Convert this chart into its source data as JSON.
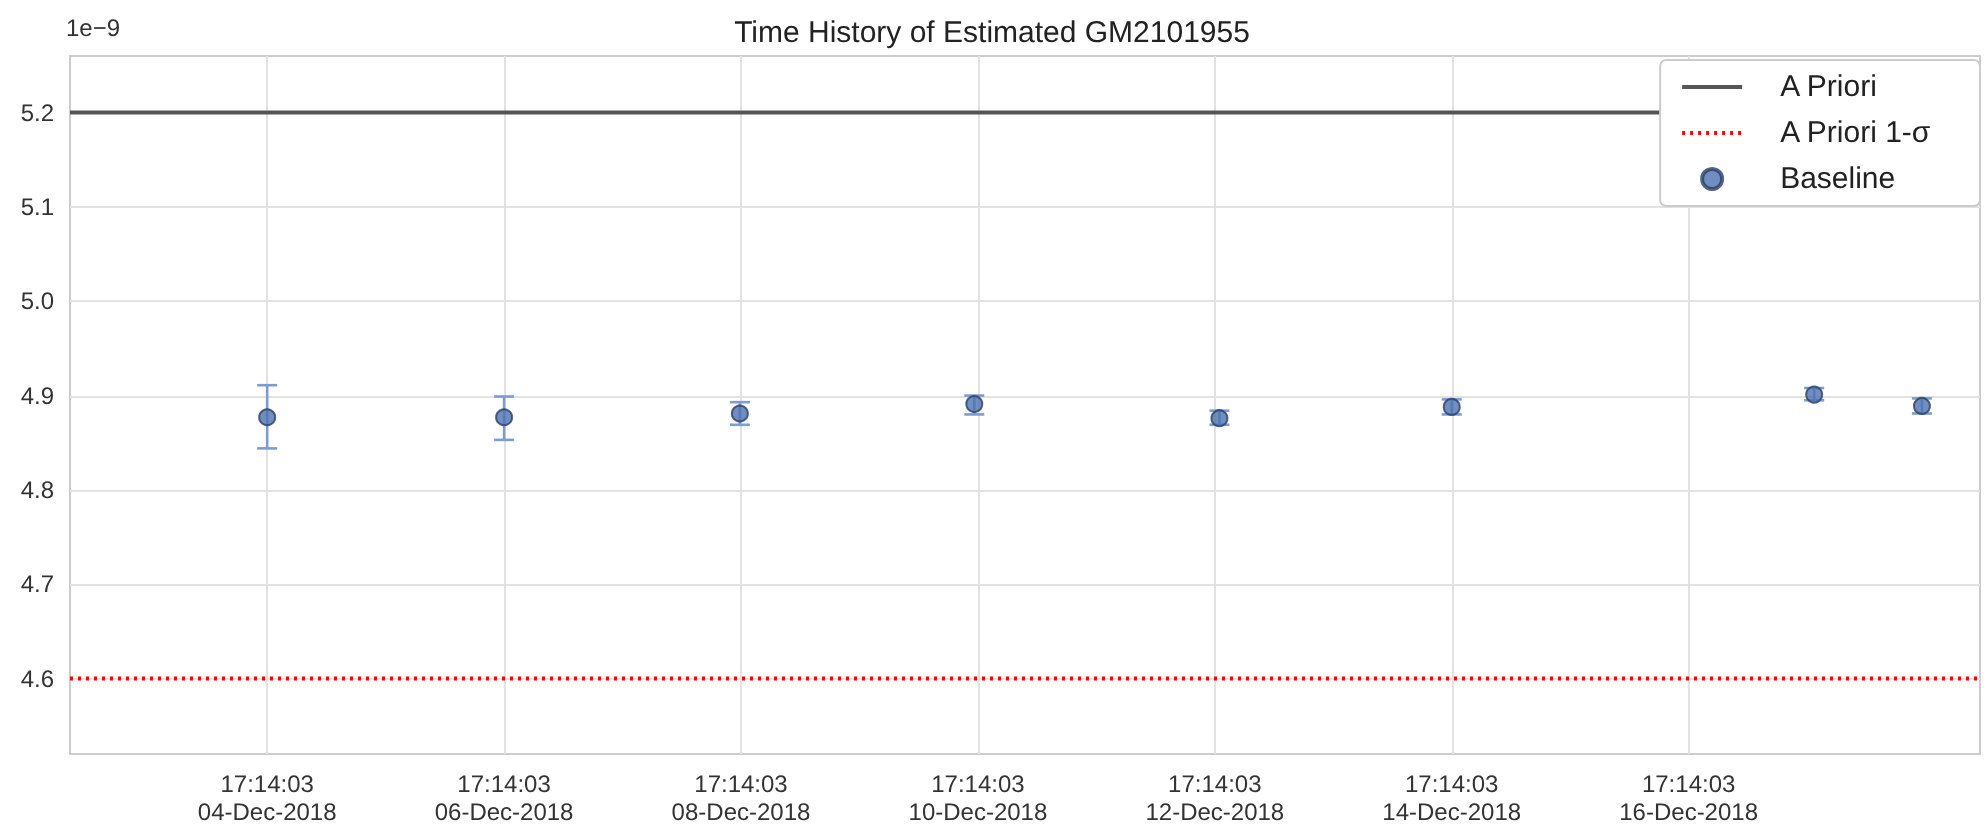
{
  "chart_data": {
    "type": "scatter",
    "title": "Time History of Estimated GM2101955",
    "annotations": [
      "1e−9"
    ],
    "x": [
      "2018-12-04T17:14",
      "2018-12-06T17:14",
      "2018-12-08T17:00",
      "2018-12-10T16:30",
      "2018-12-12T18:10",
      "2018-12-14T17:14",
      "2018-12-17T18:40",
      "2018-12-18T16:30"
    ],
    "series": [
      {
        "name": "Baseline",
        "color": "#4c72b0",
        "values": [
          4.877,
          4.877,
          4.881,
          4.891,
          4.876,
          4.888,
          4.901,
          4.889
        ],
        "errors": [
          [
            4.844,
            4.911
          ],
          [
            4.853,
            4.899
          ],
          [
            4.869,
            4.893
          ],
          [
            4.88,
            4.9
          ],
          [
            4.869,
            4.884
          ],
          [
            4.88,
            4.896
          ],
          [
            4.895,
            4.908
          ],
          [
            4.881,
            4.897
          ]
        ]
      }
    ],
    "xlim": [
      "2018-12-03T01:17",
      "2018-12-19T04:16"
    ],
    "xticks": [
      {
        "value": "2018-12-04T17:14",
        "label": "17:14:03\n04-Dec-2018"
      },
      {
        "value": "2018-12-06T17:14",
        "label": "17:14:03\n06-Dec-2018"
      },
      {
        "value": "2018-12-08T17:14",
        "label": "17:14:03\n08-Dec-2018"
      },
      {
        "value": "2018-12-10T17:14",
        "label": "17:14:03\n10-Dec-2018"
      },
      {
        "value": "2018-12-12T17:14",
        "label": "17:14:03\n12-Dec-2018"
      },
      {
        "value": "2018-12-14T17:14",
        "label": "17:14:03\n14-Dec-2018"
      },
      {
        "value": "2018-12-16T17:14",
        "label": "17:14:03\n16-Dec-2018"
      }
    ],
    "ylim": [
      4.52,
      5.26
    ],
    "yticks": [
      4.6,
      4.7,
      4.8,
      4.9,
      {
        "value": 5,
        "label": "5.0"
      },
      5.1,
      5.2
    ],
    "ref_lines": [
      {
        "axis": "y",
        "value": 5.2,
        "label": "A Priori",
        "color": "#555555",
        "line_style": "solid"
      },
      {
        "axis": "y",
        "value": 4.6,
        "label": "A Priori 1-σ",
        "color": "#ff0000",
        "line_style": "dotted"
      }
    ],
    "grid": true,
    "legend": "top right",
    "marker": "circle"
  }
}
